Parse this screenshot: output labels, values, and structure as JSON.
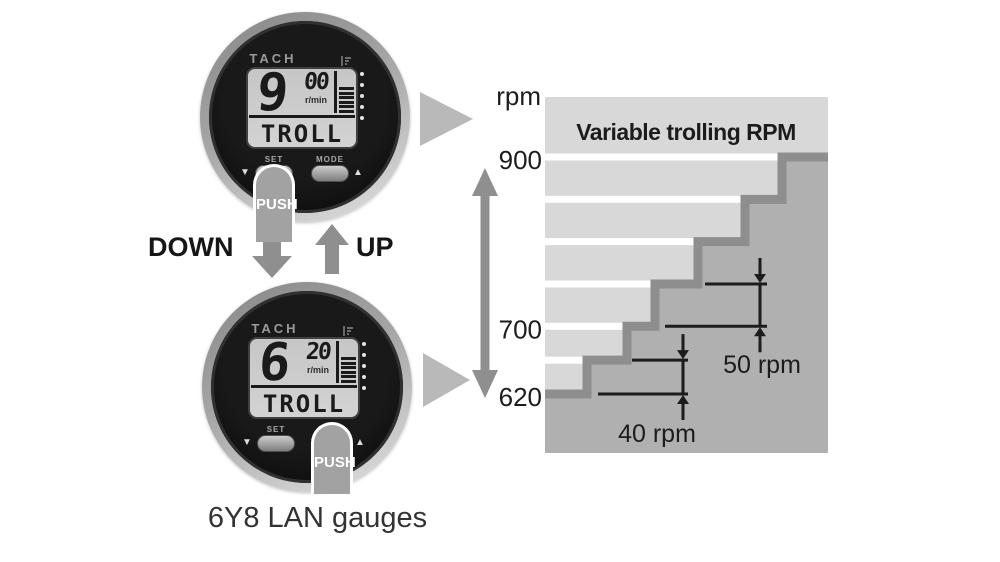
{
  "colors": {
    "stripe": "#d8d8d8",
    "area_fill": "#b0b0b0",
    "stair_line": "#8e8e8e",
    "ink": "#1c1c1c",
    "gray_arrow": "#8f8f8f",
    "pointer_triangle": "#b9b9b9"
  },
  "gauges": {
    "caption": "6Y8 LAN gauges",
    "down_label": "DOWN",
    "up_label": "UP",
    "push_label": "PUSH",
    "icons": {
      "triangle_down": "▼",
      "triangle_up": "▲"
    },
    "top": {
      "brand": "TACH",
      "value": "9",
      "value_sup": "00",
      "unit": "r/min",
      "mode": "TROLL",
      "set_label": "SET",
      "mode_label": "MODE",
      "pressed": "SET"
    },
    "bottom": {
      "brand": "TACH",
      "value": "6",
      "value_sup": "20",
      "unit": "r/min",
      "mode": "TROLL",
      "set_label": "SET",
      "mode_label": "MODE",
      "pressed": "MODE"
    }
  },
  "chart_data": {
    "type": "step-area",
    "title": "Variable trolling RPM",
    "ylabel": "rpm",
    "ylim": [
      620,
      900
    ],
    "yticks": [
      900,
      700,
      620
    ],
    "levels_rpm": [
      620,
      660,
      700,
      750,
      800,
      850,
      900
    ],
    "gridline_rpm": [
      660,
      700,
      750,
      800,
      850,
      900
    ],
    "step_size_low_rpm": 40,
    "step_size_high_rpm": 50,
    "annotations": [
      {
        "label": "40 rpm",
        "from_rpm": 620,
        "to_rpm": 660
      },
      {
        "label": "50 rpm",
        "from_rpm": 700,
        "to_rpm": 750
      }
    ],
    "range_arrow": {
      "from_rpm": 620,
      "to_rpm": 900
    }
  }
}
